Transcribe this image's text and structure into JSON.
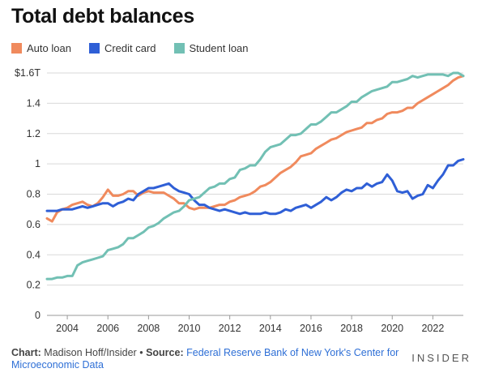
{
  "chart_data": {
    "type": "line",
    "title": "Total debt balances",
    "xlabel": "",
    "ylabel": "",
    "xlim": [
      2003,
      2023.5
    ],
    "ylim": [
      0,
      1.6
    ],
    "yticks": [
      0,
      0.2,
      0.4,
      0.6,
      0.8,
      1,
      1.2,
      1.4,
      1.6
    ],
    "ytick_labels": [
      "0",
      "0.2",
      "0.4",
      "0.6",
      "0.8",
      "1",
      "1.2",
      "1.4",
      "$1.6T"
    ],
    "xticks": [
      2004,
      2006,
      2008,
      2010,
      2012,
      2014,
      2016,
      2018,
      2020,
      2022
    ],
    "xtick_labels": [
      "2004",
      "2006",
      "2008",
      "2010",
      "2012",
      "2014",
      "2016",
      "2018",
      "2020",
      "2022"
    ],
    "grid": true,
    "legend_position": "top-left",
    "series": [
      {
        "name": "Auto loan",
        "color": "#f08a5d",
        "points": [
          [
            2003.0,
            0.64
          ],
          [
            2003.25,
            0.62
          ],
          [
            2003.5,
            0.68
          ],
          [
            2003.75,
            0.7
          ],
          [
            2004.0,
            0.71
          ],
          [
            2004.25,
            0.73
          ],
          [
            2004.5,
            0.74
          ],
          [
            2004.75,
            0.75
          ],
          [
            2005.0,
            0.73
          ],
          [
            2005.25,
            0.72
          ],
          [
            2005.5,
            0.74
          ],
          [
            2005.75,
            0.78
          ],
          [
            2006.0,
            0.83
          ],
          [
            2006.25,
            0.79
          ],
          [
            2006.5,
            0.79
          ],
          [
            2006.75,
            0.8
          ],
          [
            2007.0,
            0.82
          ],
          [
            2007.25,
            0.82
          ],
          [
            2007.5,
            0.79
          ],
          [
            2007.75,
            0.81
          ],
          [
            2008.0,
            0.82
          ],
          [
            2008.25,
            0.81
          ],
          [
            2008.5,
            0.81
          ],
          [
            2008.75,
            0.81
          ],
          [
            2009.0,
            0.79
          ],
          [
            2009.25,
            0.77
          ],
          [
            2009.5,
            0.74
          ],
          [
            2009.75,
            0.74
          ],
          [
            2010.0,
            0.71
          ],
          [
            2010.25,
            0.7
          ],
          [
            2010.5,
            0.71
          ],
          [
            2010.75,
            0.71
          ],
          [
            2011.0,
            0.71
          ],
          [
            2011.25,
            0.72
          ],
          [
            2011.5,
            0.73
          ],
          [
            2011.75,
            0.73
          ],
          [
            2012.0,
            0.75
          ],
          [
            2012.25,
            0.76
          ],
          [
            2012.5,
            0.78
          ],
          [
            2012.75,
            0.79
          ],
          [
            2013.0,
            0.8
          ],
          [
            2013.25,
            0.82
          ],
          [
            2013.5,
            0.85
          ],
          [
            2013.75,
            0.86
          ],
          [
            2014.0,
            0.88
          ],
          [
            2014.25,
            0.91
          ],
          [
            2014.5,
            0.94
          ],
          [
            2014.75,
            0.96
          ],
          [
            2015.0,
            0.98
          ],
          [
            2015.25,
            1.01
          ],
          [
            2015.5,
            1.05
          ],
          [
            2015.75,
            1.06
          ],
          [
            2016.0,
            1.07
          ],
          [
            2016.25,
            1.1
          ],
          [
            2016.5,
            1.12
          ],
          [
            2016.75,
            1.14
          ],
          [
            2017.0,
            1.16
          ],
          [
            2017.25,
            1.17
          ],
          [
            2017.5,
            1.19
          ],
          [
            2017.75,
            1.21
          ],
          [
            2018.0,
            1.22
          ],
          [
            2018.25,
            1.23
          ],
          [
            2018.5,
            1.24
          ],
          [
            2018.75,
            1.27
          ],
          [
            2019.0,
            1.27
          ],
          [
            2019.25,
            1.29
          ],
          [
            2019.5,
            1.3
          ],
          [
            2019.75,
            1.33
          ],
          [
            2020.0,
            1.34
          ],
          [
            2020.25,
            1.34
          ],
          [
            2020.5,
            1.35
          ],
          [
            2020.75,
            1.37
          ],
          [
            2021.0,
            1.37
          ],
          [
            2021.25,
            1.4
          ],
          [
            2021.5,
            1.42
          ],
          [
            2021.75,
            1.44
          ],
          [
            2022.0,
            1.46
          ],
          [
            2022.25,
            1.48
          ],
          [
            2022.5,
            1.5
          ],
          [
            2022.75,
            1.52
          ],
          [
            2023.0,
            1.55
          ],
          [
            2023.25,
            1.57
          ],
          [
            2023.5,
            1.58
          ]
        ]
      },
      {
        "name": "Credit card",
        "color": "#2f5fd6",
        "points": [
          [
            2003.0,
            0.69
          ],
          [
            2003.25,
            0.69
          ],
          [
            2003.5,
            0.69
          ],
          [
            2003.75,
            0.7
          ],
          [
            2004.0,
            0.7
          ],
          [
            2004.25,
            0.7
          ],
          [
            2004.5,
            0.71
          ],
          [
            2004.75,
            0.72
          ],
          [
            2005.0,
            0.71
          ],
          [
            2005.25,
            0.72
          ],
          [
            2005.5,
            0.73
          ],
          [
            2005.75,
            0.74
          ],
          [
            2006.0,
            0.74
          ],
          [
            2006.25,
            0.72
          ],
          [
            2006.5,
            0.74
          ],
          [
            2006.75,
            0.75
          ],
          [
            2007.0,
            0.77
          ],
          [
            2007.25,
            0.76
          ],
          [
            2007.5,
            0.8
          ],
          [
            2007.75,
            0.82
          ],
          [
            2008.0,
            0.84
          ],
          [
            2008.25,
            0.84
          ],
          [
            2008.5,
            0.85
          ],
          [
            2008.75,
            0.86
          ],
          [
            2009.0,
            0.87
          ],
          [
            2009.25,
            0.84
          ],
          [
            2009.5,
            0.82
          ],
          [
            2009.75,
            0.81
          ],
          [
            2010.0,
            0.8
          ],
          [
            2010.25,
            0.76
          ],
          [
            2010.5,
            0.73
          ],
          [
            2010.75,
            0.73
          ],
          [
            2011.0,
            0.71
          ],
          [
            2011.25,
            0.7
          ],
          [
            2011.5,
            0.69
          ],
          [
            2011.75,
            0.7
          ],
          [
            2012.0,
            0.69
          ],
          [
            2012.25,
            0.68
          ],
          [
            2012.5,
            0.67
          ],
          [
            2012.75,
            0.68
          ],
          [
            2013.0,
            0.67
          ],
          [
            2013.25,
            0.67
          ],
          [
            2013.5,
            0.67
          ],
          [
            2013.75,
            0.68
          ],
          [
            2014.0,
            0.67
          ],
          [
            2014.25,
            0.67
          ],
          [
            2014.5,
            0.68
          ],
          [
            2014.75,
            0.7
          ],
          [
            2015.0,
            0.69
          ],
          [
            2015.25,
            0.71
          ],
          [
            2015.5,
            0.72
          ],
          [
            2015.75,
            0.73
          ],
          [
            2016.0,
            0.71
          ],
          [
            2016.25,
            0.73
          ],
          [
            2016.5,
            0.75
          ],
          [
            2016.75,
            0.78
          ],
          [
            2017.0,
            0.76
          ],
          [
            2017.25,
            0.78
          ],
          [
            2017.5,
            0.81
          ],
          [
            2017.75,
            0.83
          ],
          [
            2018.0,
            0.82
          ],
          [
            2018.25,
            0.84
          ],
          [
            2018.5,
            0.84
          ],
          [
            2018.75,
            0.87
          ],
          [
            2019.0,
            0.85
          ],
          [
            2019.25,
            0.87
          ],
          [
            2019.5,
            0.88
          ],
          [
            2019.75,
            0.93
          ],
          [
            2020.0,
            0.89
          ],
          [
            2020.25,
            0.82
          ],
          [
            2020.5,
            0.81
          ],
          [
            2020.75,
            0.82
          ],
          [
            2021.0,
            0.77
          ],
          [
            2021.25,
            0.79
          ],
          [
            2021.5,
            0.8
          ],
          [
            2021.75,
            0.86
          ],
          [
            2022.0,
            0.84
          ],
          [
            2022.25,
            0.89
          ],
          [
            2022.5,
            0.93
          ],
          [
            2022.75,
            0.99
          ],
          [
            2023.0,
            0.99
          ],
          [
            2023.25,
            1.02
          ],
          [
            2023.5,
            1.03
          ]
        ]
      },
      {
        "name": "Student loan",
        "color": "#72c0b4",
        "points": [
          [
            2003.0,
            0.24
          ],
          [
            2003.25,
            0.24
          ],
          [
            2003.5,
            0.25
          ],
          [
            2003.75,
            0.25
          ],
          [
            2004.0,
            0.26
          ],
          [
            2004.25,
            0.26
          ],
          [
            2004.5,
            0.33
          ],
          [
            2004.75,
            0.35
          ],
          [
            2005.0,
            0.36
          ],
          [
            2005.25,
            0.37
          ],
          [
            2005.5,
            0.38
          ],
          [
            2005.75,
            0.39
          ],
          [
            2006.0,
            0.43
          ],
          [
            2006.25,
            0.44
          ],
          [
            2006.5,
            0.45
          ],
          [
            2006.75,
            0.47
          ],
          [
            2007.0,
            0.51
          ],
          [
            2007.25,
            0.51
          ],
          [
            2007.5,
            0.53
          ],
          [
            2007.75,
            0.55
          ],
          [
            2008.0,
            0.58
          ],
          [
            2008.25,
            0.59
          ],
          [
            2008.5,
            0.61
          ],
          [
            2008.75,
            0.64
          ],
          [
            2009.0,
            0.66
          ],
          [
            2009.25,
            0.68
          ],
          [
            2009.5,
            0.69
          ],
          [
            2009.75,
            0.72
          ],
          [
            2010.0,
            0.76
          ],
          [
            2010.25,
            0.77
          ],
          [
            2010.5,
            0.78
          ],
          [
            2010.75,
            0.81
          ],
          [
            2011.0,
            0.84
          ],
          [
            2011.25,
            0.85
          ],
          [
            2011.5,
            0.87
          ],
          [
            2011.75,
            0.87
          ],
          [
            2012.0,
            0.9
          ],
          [
            2012.25,
            0.91
          ],
          [
            2012.5,
            0.96
          ],
          [
            2012.75,
            0.97
          ],
          [
            2013.0,
            0.99
          ],
          [
            2013.25,
            0.99
          ],
          [
            2013.5,
            1.03
          ],
          [
            2013.75,
            1.08
          ],
          [
            2014.0,
            1.11
          ],
          [
            2014.25,
            1.12
          ],
          [
            2014.5,
            1.13
          ],
          [
            2014.75,
            1.16
          ],
          [
            2015.0,
            1.19
          ],
          [
            2015.25,
            1.19
          ],
          [
            2015.5,
            1.2
          ],
          [
            2015.75,
            1.23
          ],
          [
            2016.0,
            1.26
          ],
          [
            2016.25,
            1.26
          ],
          [
            2016.5,
            1.28
          ],
          [
            2016.75,
            1.31
          ],
          [
            2017.0,
            1.34
          ],
          [
            2017.25,
            1.34
          ],
          [
            2017.5,
            1.36
          ],
          [
            2017.75,
            1.38
          ],
          [
            2018.0,
            1.41
          ],
          [
            2018.25,
            1.41
          ],
          [
            2018.5,
            1.44
          ],
          [
            2018.75,
            1.46
          ],
          [
            2019.0,
            1.48
          ],
          [
            2019.25,
            1.49
          ],
          [
            2019.5,
            1.5
          ],
          [
            2019.75,
            1.51
          ],
          [
            2020.0,
            1.54
          ],
          [
            2020.25,
            1.54
          ],
          [
            2020.5,
            1.55
          ],
          [
            2020.75,
            1.56
          ],
          [
            2021.0,
            1.58
          ],
          [
            2021.25,
            1.57
          ],
          [
            2021.5,
            1.58
          ],
          [
            2021.75,
            1.59
          ],
          [
            2022.0,
            1.59
          ],
          [
            2022.25,
            1.59
          ],
          [
            2022.5,
            1.59
          ],
          [
            2022.75,
            1.58
          ],
          [
            2023.0,
            1.6
          ],
          [
            2023.25,
            1.6
          ],
          [
            2023.5,
            1.58
          ]
        ]
      }
    ]
  },
  "footer": {
    "chart_label": "Chart:",
    "chart_author": "Madison Hoff/Insider",
    "bullet": "•",
    "source_label": "Source:",
    "source_text": "Federal Reserve Bank of New York's Center for Microeconomic Data"
  },
  "brand": "INSIDER"
}
